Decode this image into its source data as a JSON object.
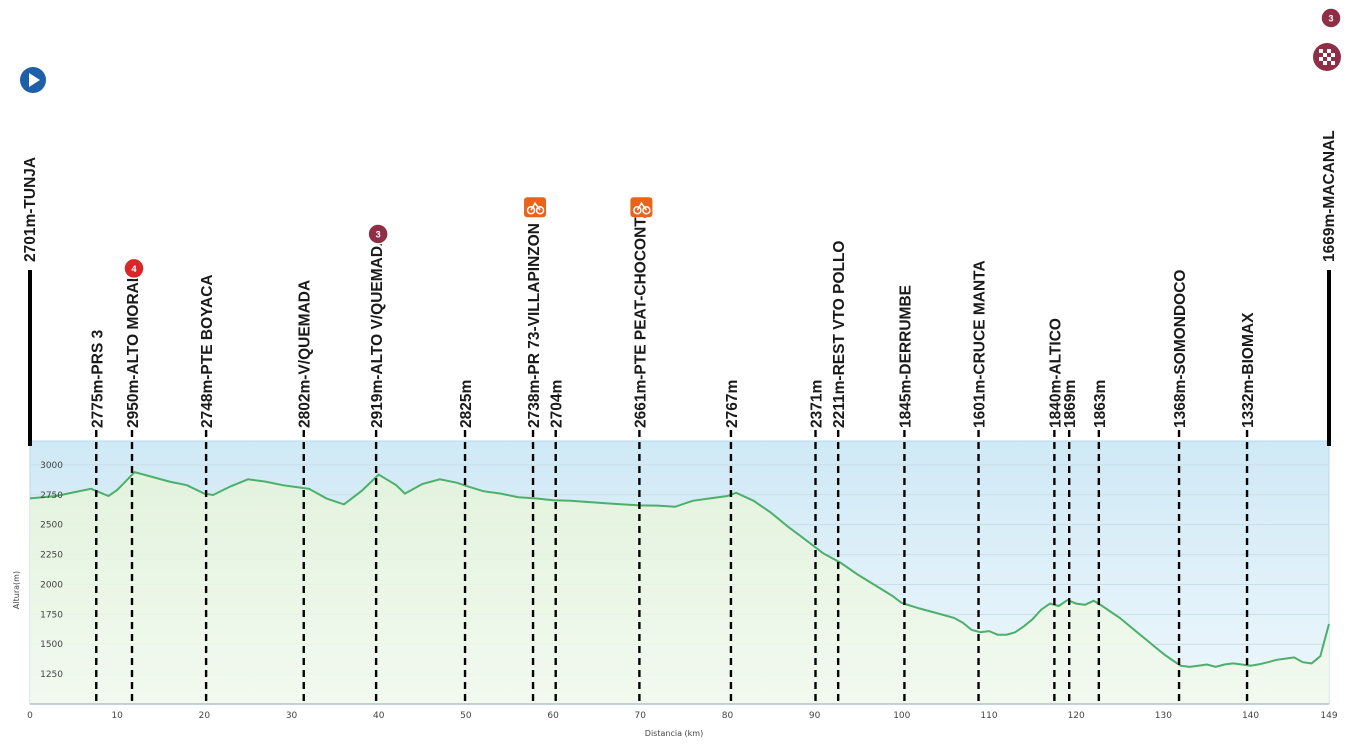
{
  "chart_data": {
    "type": "area",
    "xlabel": "Distancia (km)",
    "ylabel": "Altura(m)",
    "xlim": [
      0,
      149
    ],
    "ylim": [
      1000,
      3200
    ],
    "x_ticks": [
      0,
      10,
      20,
      30,
      40,
      50,
      60,
      70,
      80,
      90,
      100,
      110,
      120,
      130,
      140,
      149
    ],
    "y_ticks": [
      1250,
      1500,
      1750,
      2000,
      2250,
      2500,
      2750,
      3000
    ],
    "grid": true,
    "colors": {
      "line": "#4caf6a",
      "fill_top": "#cfe9f6",
      "fill_bottom": "#eef7fc",
      "marker": "#000000",
      "badge_red": "#d9262b",
      "badge_maroon": "#8e2f46",
      "badge_orange": "#e8631c",
      "start_blue": "#1d5fa8"
    },
    "profile": {
      "x": [
        0,
        3,
        5,
        7,
        9,
        10,
        12,
        14,
        16,
        18,
        20,
        21,
        23,
        25,
        27,
        29,
        31,
        32,
        34,
        36,
        38,
        40,
        42,
        43,
        45,
        47,
        49,
        50,
        52,
        54,
        56,
        58,
        60,
        62,
        64,
        66,
        68,
        70,
        72,
        74,
        76,
        78,
        80,
        81,
        83,
        85,
        87,
        89,
        91,
        93,
        95,
        97,
        99,
        100,
        102,
        104,
        106,
        107,
        108,
        109,
        110,
        111,
        112,
        113,
        114,
        115,
        116,
        117,
        118,
        119,
        120,
        121,
        122,
        123,
        124,
        125,
        126,
        127,
        128,
        129,
        130,
        131,
        132,
        133,
        134,
        135,
        136,
        137,
        138,
        139,
        140,
        141,
        142,
        143,
        144,
        145,
        146,
        147,
        148,
        149
      ],
      "y": [
        2720,
        2740,
        2770,
        2800,
        2740,
        2790,
        2940,
        2900,
        2860,
        2830,
        2760,
        2748,
        2820,
        2880,
        2860,
        2830,
        2810,
        2800,
        2720,
        2670,
        2780,
        2919,
        2830,
        2760,
        2840,
        2880,
        2850,
        2825,
        2780,
        2760,
        2730,
        2720,
        2704,
        2700,
        2690,
        2680,
        2670,
        2661,
        2660,
        2650,
        2700,
        2720,
        2740,
        2767,
        2700,
        2600,
        2480,
        2371,
        2260,
        2180,
        2080,
        1990,
        1900,
        1845,
        1800,
        1760,
        1720,
        1680,
        1620,
        1601,
        1610,
        1580,
        1580,
        1600,
        1650,
        1710,
        1790,
        1840,
        1820,
        1869,
        1840,
        1830,
        1863,
        1820,
        1770,
        1720,
        1660,
        1600,
        1540,
        1480,
        1420,
        1368,
        1320,
        1310,
        1320,
        1330,
        1310,
        1330,
        1340,
        1330,
        1320,
        1332,
        1350,
        1370,
        1380,
        1390,
        1350,
        1340,
        1400,
        1669
      ]
    },
    "points": [
      {
        "km": 0,
        "label": "2701m-TUNJA",
        "top": true
      },
      {
        "km": 7.6,
        "label": "2775m-PRS 3"
      },
      {
        "km": 11.7,
        "label": "2950m-ALTO MORAL",
        "badge": "4"
      },
      {
        "km": 20.2,
        "label": "2748m-PTE BOYACA"
      },
      {
        "km": 31.4,
        "label": "2802m-V/QUEMADA"
      },
      {
        "km": 39.7,
        "label": "2919m-ALTO V/QUEMADA",
        "badge": "3"
      },
      {
        "km": 49.9,
        "label": "2825m"
      },
      {
        "km": 57.7,
        "label": "2738m-PR 73-VILLAPINZON",
        "badge": "sprint"
      },
      {
        "km": 60.3,
        "label": "2704m"
      },
      {
        "km": 69.9,
        "label": "2661m-PTE PEAT-CHOCONTA",
        "badge": "sprint"
      },
      {
        "km": 80.4,
        "label": "2767m"
      },
      {
        "km": 90.1,
        "label": "2371m"
      },
      {
        "km": 92.7,
        "label": "2211m-REST VTO POLLO"
      },
      {
        "km": 100.3,
        "label": "1845m-DERRUMBE"
      },
      {
        "km": 108.8,
        "label": "1601m-CRUCE MANTA"
      },
      {
        "km": 117.5,
        "label": "1840m-ALTICO"
      },
      {
        "km": 119.2,
        "label": "1869m"
      },
      {
        "km": 122.6,
        "label": "1863m"
      },
      {
        "km": 131.8,
        "label": "1368m-SOMONDOCO"
      },
      {
        "km": 139.6,
        "label": "1332m-BIOMAX"
      },
      {
        "km": 149,
        "label": "1669m-MACANAL",
        "top": true,
        "badge": "3"
      }
    ]
  }
}
